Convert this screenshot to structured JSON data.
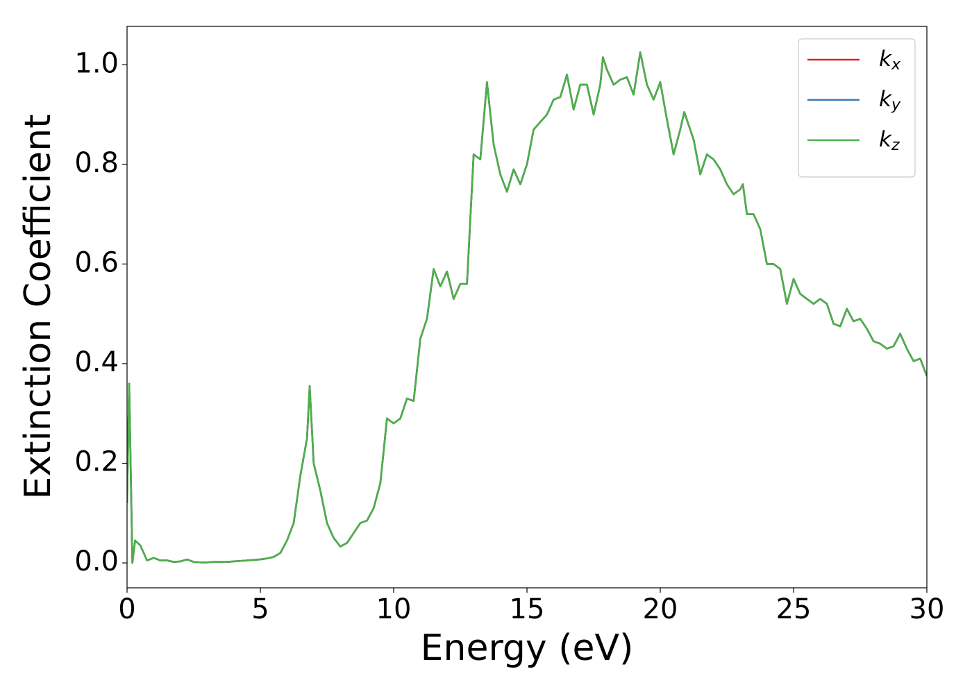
{
  "chart_data": {
    "type": "line",
    "xlabel": "Energy (eV)",
    "ylabel": "Extinction Coefficient",
    "x": [
      0,
      0.08,
      0.2,
      0.3,
      0.5,
      0.75,
      1.0,
      1.25,
      1.5,
      1.75,
      2.0,
      2.25,
      2.5,
      2.75,
      3,
      3.25,
      3.5,
      3.75,
      4,
      4.25,
      4.5,
      4.75,
      5,
      5.25,
      5.5,
      5.75,
      6,
      6.25,
      6.5,
      6.75,
      6.85,
      7.0,
      7.25,
      7.5,
      7.75,
      8.0,
      8.25,
      8.5,
      8.75,
      9.0,
      9.25,
      9.5,
      9.75,
      10,
      10.25,
      10.5,
      10.75,
      11,
      11.25,
      11.5,
      11.75,
      12,
      12.25,
      12.5,
      12.75,
      13,
      13.25,
      13.5,
      13.75,
      14,
      14.25,
      14.5,
      14.75,
      15,
      15.25,
      15.5,
      15.75,
      16,
      16.25,
      16.5,
      16.75,
      17,
      17.25,
      17.5,
      17.75,
      17.85,
      18,
      18.25,
      18.5,
      18.75,
      19,
      19.25,
      19.5,
      19.75,
      20,
      20.25,
      20.5,
      20.75,
      20.9,
      21.25,
      21.5,
      21.75,
      22,
      22.25,
      22.5,
      22.75,
      23,
      23.1,
      23.25,
      23.5,
      23.75,
      24,
      24.25,
      24.5,
      24.75,
      25,
      25.25,
      25.5,
      25.75,
      26,
      26.25,
      26.5,
      26.75,
      27,
      27.25,
      27.5,
      27.75,
      28,
      28.25,
      28.5,
      28.75,
      29,
      29.25,
      29.5,
      29.75,
      30
    ],
    "series": [
      {
        "name": "kx",
        "color": "#e41a1c",
        "values": [
          0.12,
          0.36,
          0.0,
          0.045,
          0.035,
          0.005,
          0.01,
          0.005,
          0.005,
          0.002,
          0.003,
          0.007,
          0.002,
          0.001,
          0.001,
          0.002,
          0.002,
          0.002,
          0.003,
          0.004,
          0.005,
          0.006,
          0.007,
          0.009,
          0.012,
          0.02,
          0.045,
          0.08,
          0.175,
          0.25,
          0.355,
          0.2,
          0.145,
          0.08,
          0.05,
          0.033,
          0.04,
          0.06,
          0.08,
          0.085,
          0.11,
          0.16,
          0.29,
          0.28,
          0.29,
          0.33,
          0.325,
          0.45,
          0.49,
          0.59,
          0.555,
          0.585,
          0.53,
          0.56,
          0.56,
          0.82,
          0.81,
          0.965,
          0.84,
          0.78,
          0.745,
          0.79,
          0.76,
          0.8,
          0.87,
          0.885,
          0.9,
          0.93,
          0.935,
          0.98,
          0.91,
          0.96,
          0.96,
          0.9,
          0.96,
          1.015,
          0.99,
          0.96,
          0.97,
          0.975,
          0.94,
          1.025,
          0.96,
          0.93,
          0.965,
          0.89,
          0.82,
          0.87,
          0.905,
          0.85,
          0.78,
          0.82,
          0.81,
          0.79,
          0.76,
          0.74,
          0.75,
          0.76,
          0.7,
          0.7,
          0.67,
          0.6,
          0.6,
          0.59,
          0.52,
          0.57,
          0.54,
          0.53,
          0.52,
          0.53,
          0.52,
          0.48,
          0.475,
          0.51,
          0.485,
          0.49,
          0.47,
          0.445,
          0.44,
          0.43,
          0.435,
          0.46,
          0.43,
          0.405,
          0.41,
          0.375
        ]
      },
      {
        "name": "ky",
        "color": "#377eb8",
        "values": [
          0.12,
          0.36,
          0.0,
          0.045,
          0.035,
          0.005,
          0.01,
          0.005,
          0.005,
          0.002,
          0.003,
          0.007,
          0.002,
          0.001,
          0.001,
          0.002,
          0.002,
          0.002,
          0.003,
          0.004,
          0.005,
          0.006,
          0.007,
          0.009,
          0.012,
          0.02,
          0.045,
          0.08,
          0.175,
          0.25,
          0.355,
          0.2,
          0.145,
          0.08,
          0.05,
          0.033,
          0.04,
          0.06,
          0.08,
          0.085,
          0.11,
          0.16,
          0.29,
          0.28,
          0.29,
          0.33,
          0.325,
          0.45,
          0.49,
          0.59,
          0.555,
          0.585,
          0.53,
          0.56,
          0.56,
          0.82,
          0.81,
          0.965,
          0.84,
          0.78,
          0.745,
          0.79,
          0.76,
          0.8,
          0.87,
          0.885,
          0.9,
          0.93,
          0.935,
          0.98,
          0.91,
          0.96,
          0.96,
          0.9,
          0.96,
          1.015,
          0.99,
          0.96,
          0.97,
          0.975,
          0.94,
          1.025,
          0.96,
          0.93,
          0.965,
          0.89,
          0.82,
          0.87,
          0.905,
          0.85,
          0.78,
          0.82,
          0.81,
          0.79,
          0.76,
          0.74,
          0.75,
          0.76,
          0.7,
          0.7,
          0.67,
          0.6,
          0.6,
          0.59,
          0.52,
          0.57,
          0.54,
          0.53,
          0.52,
          0.53,
          0.52,
          0.48,
          0.475,
          0.51,
          0.485,
          0.49,
          0.47,
          0.445,
          0.44,
          0.43,
          0.435,
          0.46,
          0.43,
          0.405,
          0.41,
          0.375
        ]
      },
      {
        "name": "kz",
        "color": "#4daf4a",
        "values": [
          0.12,
          0.36,
          0.0,
          0.045,
          0.035,
          0.005,
          0.01,
          0.005,
          0.005,
          0.002,
          0.003,
          0.007,
          0.002,
          0.001,
          0.001,
          0.002,
          0.002,
          0.002,
          0.003,
          0.004,
          0.005,
          0.006,
          0.007,
          0.009,
          0.012,
          0.02,
          0.045,
          0.08,
          0.175,
          0.25,
          0.355,
          0.2,
          0.145,
          0.08,
          0.05,
          0.033,
          0.04,
          0.06,
          0.08,
          0.085,
          0.11,
          0.16,
          0.29,
          0.28,
          0.29,
          0.33,
          0.325,
          0.45,
          0.49,
          0.59,
          0.555,
          0.585,
          0.53,
          0.56,
          0.56,
          0.82,
          0.81,
          0.965,
          0.84,
          0.78,
          0.745,
          0.79,
          0.76,
          0.8,
          0.87,
          0.885,
          0.9,
          0.93,
          0.935,
          0.98,
          0.91,
          0.96,
          0.96,
          0.9,
          0.96,
          1.015,
          0.99,
          0.96,
          0.97,
          0.975,
          0.94,
          1.025,
          0.96,
          0.93,
          0.965,
          0.89,
          0.82,
          0.87,
          0.905,
          0.85,
          0.78,
          0.82,
          0.81,
          0.79,
          0.76,
          0.74,
          0.75,
          0.76,
          0.7,
          0.7,
          0.67,
          0.6,
          0.6,
          0.59,
          0.52,
          0.57,
          0.54,
          0.53,
          0.52,
          0.53,
          0.52,
          0.48,
          0.475,
          0.51,
          0.485,
          0.49,
          0.47,
          0.445,
          0.44,
          0.43,
          0.435,
          0.46,
          0.43,
          0.405,
          0.41,
          0.375
        ]
      }
    ],
    "xlim": [
      0,
      30
    ],
    "xticks": [
      0,
      5,
      10,
      15,
      20,
      25,
      30
    ],
    "ylim": [
      -0.05,
      1.077
    ],
    "yticks": [
      {
        "value": 0,
        "label": "0.0"
      },
      0.2,
      0.4,
      0.6,
      0.8,
      {
        "value": 1,
        "label": "1.0"
      }
    ],
    "grid": false,
    "legend": "upper right"
  }
}
